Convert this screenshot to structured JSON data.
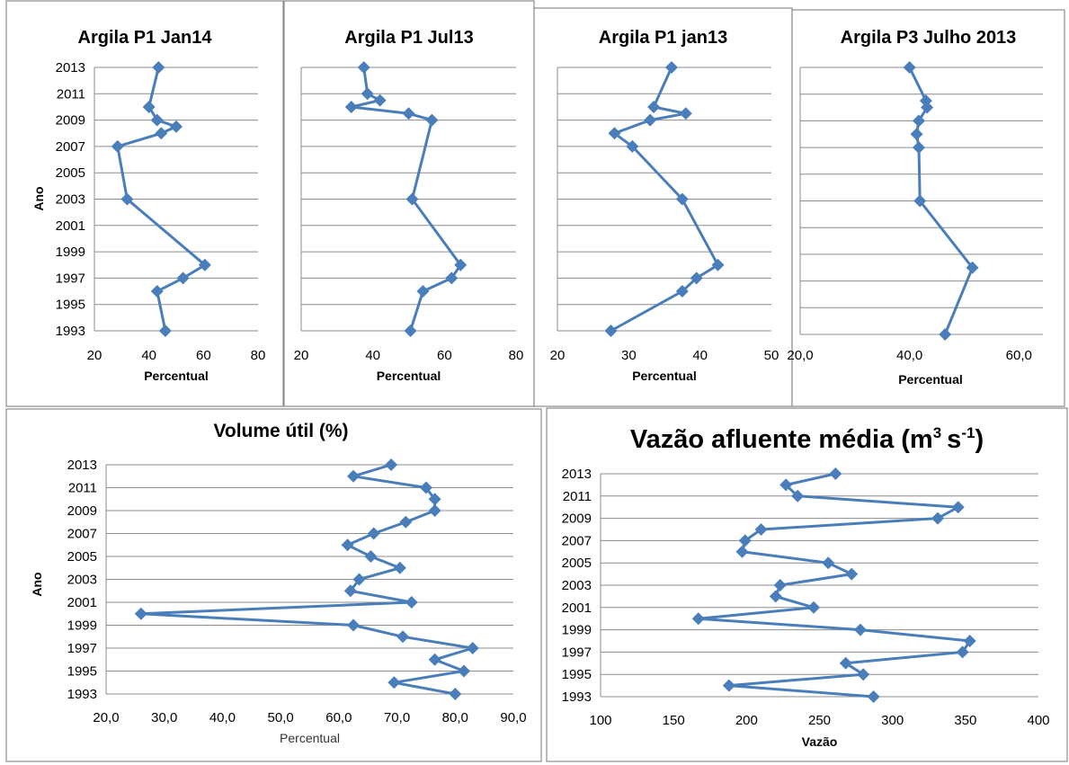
{
  "chart_data": [
    {
      "type": "line",
      "title": "Argila P1 Jan14",
      "xlabel": "Percentual",
      "ylabel": "Ano",
      "xlim": [
        20,
        80
      ],
      "xticks": [
        "20",
        "40",
        "60",
        "80"
      ],
      "ylim": [
        1993,
        2013
      ],
      "yticks": [
        "1993",
        "1995",
        "1997",
        "1999",
        "2001",
        "2003",
        "2005",
        "2007",
        "2009",
        "2011",
        "2013"
      ],
      "series": [
        {
          "points": [
            {
              "year": 2013,
              "value": 43.5
            },
            {
              "year": 2010,
              "value": 40
            },
            {
              "year": 2009,
              "value": 43
            },
            {
              "year": 2008.5,
              "value": 50
            },
            {
              "year": 2008,
              "value": 44.5
            },
            {
              "year": 2007,
              "value": 28.5
            },
            {
              "year": 2003,
              "value": 32
            },
            {
              "year": 1998,
              "value": 60.5
            },
            {
              "year": 1997,
              "value": 52.5
            },
            {
              "year": 1996,
              "value": 43
            },
            {
              "year": 1993,
              "value": 46
            }
          ]
        }
      ]
    },
    {
      "type": "line",
      "title": "Argila P1 Jul13",
      "xlabel": "Percentual",
      "ylabel": "",
      "xlim": [
        20,
        80
      ],
      "xticks": [
        "20",
        "40",
        "60",
        "80"
      ],
      "ylim": [
        1993,
        2013
      ],
      "yticks": [],
      "series": [
        {
          "points": [
            {
              "year": 2013,
              "value": 37.5
            },
            {
              "year": 2011,
              "value": 38.5
            },
            {
              "year": 2010.5,
              "value": 42
            },
            {
              "year": 2010,
              "value": 34
            },
            {
              "year": 2009.5,
              "value": 50
            },
            {
              "year": 2009,
              "value": 56.5
            },
            {
              "year": 2003,
              "value": 51
            },
            {
              "year": 1998,
              "value": 64.5
            },
            {
              "year": 1997,
              "value": 62
            },
            {
              "year": 1996,
              "value": 54
            },
            {
              "year": 1993,
              "value": 50.5
            }
          ]
        }
      ]
    },
    {
      "type": "line",
      "title": "Argila P1 jan13",
      "xlabel": "Percentual",
      "ylabel": "",
      "xlim": [
        20,
        50
      ],
      "xticks": [
        "20",
        "30",
        "40",
        "50"
      ],
      "ylim": [
        1993,
        2013
      ],
      "yticks": [],
      "series": [
        {
          "points": [
            {
              "year": 2013,
              "value": 36
            },
            {
              "year": 2010,
              "value": 33.5
            },
            {
              "year": 2009.5,
              "value": 38
            },
            {
              "year": 2009,
              "value": 33
            },
            {
              "year": 2008,
              "value": 28
            },
            {
              "year": 2007,
              "value": 30.5
            },
            {
              "year": 2003,
              "value": 37.5
            },
            {
              "year": 1998,
              "value": 42.5
            },
            {
              "year": 1997,
              "value": 39.5
            },
            {
              "year": 1996,
              "value": 37.5
            },
            {
              "year": 1993,
              "value": 27.5
            }
          ]
        }
      ]
    },
    {
      "type": "line",
      "title": "Argila P3 Julho 2013",
      "xlabel": "Percentual",
      "ylabel": "",
      "xlim": [
        20,
        60
      ],
      "xticks": [
        "20,0",
        "40,0",
        "60,0"
      ],
      "ylim": [
        1993,
        2013
      ],
      "yticks": [],
      "series": [
        {
          "points": [
            {
              "year": 2013,
              "value": 40
            },
            {
              "year": 2010.5,
              "value": 43
            },
            {
              "year": 2010,
              "value": 43.2
            },
            {
              "year": 2009,
              "value": 41.7
            },
            {
              "year": 2008,
              "value": 41.3
            },
            {
              "year": 2007,
              "value": 41.7
            },
            {
              "year": 2003,
              "value": 41.9
            },
            {
              "year": 1998,
              "value": 51.5
            },
            {
              "year": 1993,
              "value": 46.5
            }
          ]
        }
      ]
    },
    {
      "type": "line",
      "title": "Volume útil (%)",
      "xlabel": "Percentual",
      "ylabel": "Ano",
      "xlim": [
        20,
        90
      ],
      "xticks": [
        "20,0",
        "30,0",
        "40,0",
        "50,0",
        "60,0",
        "70,0",
        "80,0",
        "90,0"
      ],
      "ylim": [
        1993,
        2013
      ],
      "yticks": [
        "1993",
        "1995",
        "1997",
        "1999",
        "2001",
        "2003",
        "2005",
        "2007",
        "2009",
        "2011",
        "2013"
      ],
      "series": [
        {
          "points": [
            {
              "year": 2013,
              "value": 69
            },
            {
              "year": 2012,
              "value": 62.5
            },
            {
              "year": 2011,
              "value": 75
            },
            {
              "year": 2010,
              "value": 76.5
            },
            {
              "year": 2009,
              "value": 76.5
            },
            {
              "year": 2008,
              "value": 71.5
            },
            {
              "year": 2007,
              "value": 66
            },
            {
              "year": 2006,
              "value": 61.5
            },
            {
              "year": 2005,
              "value": 65.5
            },
            {
              "year": 2004,
              "value": 70.5
            },
            {
              "year": 2003,
              "value": 63.5
            },
            {
              "year": 2002,
              "value": 62
            },
            {
              "year": 2001,
              "value": 72.5
            },
            {
              "year": 2000,
              "value": 26
            },
            {
              "year": 1999,
              "value": 62.5
            },
            {
              "year": 1998,
              "value": 71
            },
            {
              "year": 1997,
              "value": 83
            },
            {
              "year": 1996,
              "value": 76.5
            },
            {
              "year": 1995,
              "value": 81.5
            },
            {
              "year": 1994,
              "value": 69.5
            },
            {
              "year": 1993,
              "value": 80
            }
          ]
        }
      ]
    },
    {
      "type": "line",
      "title": "Vazão afluente média (m",
      "title_unit_sup1": "3",
      "title_mid": "s",
      "title_unit_sup2": "-1",
      "title_end": ")",
      "xlabel": "Vazão",
      "ylabel": "",
      "xlim": [
        100,
        400
      ],
      "xticks": [
        "100",
        "150",
        "200",
        "250",
        "300",
        "350",
        "400"
      ],
      "ylim": [
        1993,
        2013
      ],
      "yticks": [
        "1993",
        "1995",
        "1997",
        "1999",
        "2001",
        "2003",
        "2005",
        "2007",
        "2009",
        "2011",
        "2013"
      ],
      "series": [
        {
          "points": [
            {
              "year": 2013,
              "value": 261
            },
            {
              "year": 2012,
              "value": 227
            },
            {
              "year": 2011,
              "value": 235
            },
            {
              "year": 2010,
              "value": 345
            },
            {
              "year": 2009,
              "value": 331
            },
            {
              "year": 2008,
              "value": 210
            },
            {
              "year": 2007,
              "value": 199
            },
            {
              "year": 2006,
              "value": 197
            },
            {
              "year": 2005,
              "value": 256
            },
            {
              "year": 2004,
              "value": 272
            },
            {
              "year": 2003,
              "value": 223
            },
            {
              "year": 2002,
              "value": 220
            },
            {
              "year": 2001,
              "value": 246
            },
            {
              "year": 2000,
              "value": 167
            },
            {
              "year": 1999,
              "value": 278
            },
            {
              "year": 1998,
              "value": 353
            },
            {
              "year": 1997,
              "value": 348
            },
            {
              "year": 1996,
              "value": 268
            },
            {
              "year": 1995,
              "value": 280
            },
            {
              "year": 1994,
              "value": 188
            },
            {
              "year": 1993,
              "value": 287
            }
          ]
        }
      ]
    }
  ]
}
